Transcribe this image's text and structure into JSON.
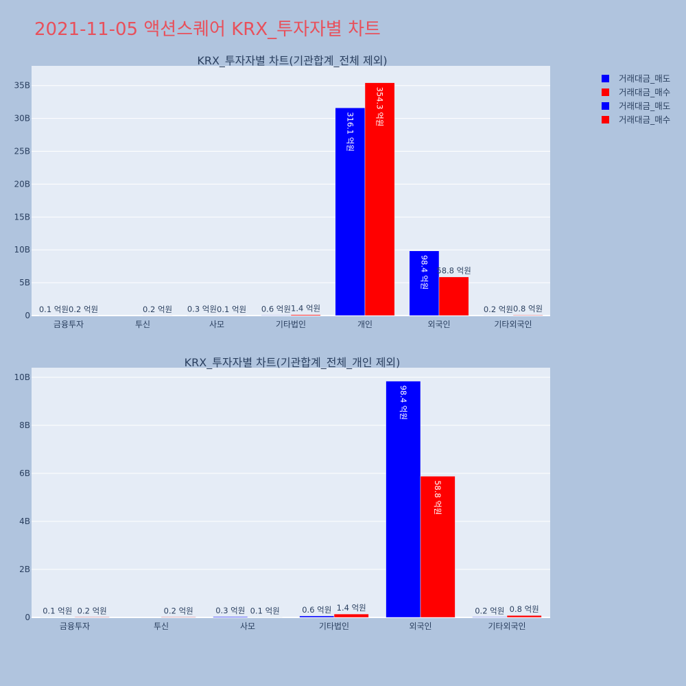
{
  "title": "2021-11-05 액션스퀘어 KRX_투자자별 차트",
  "legend": [
    "거래대금_매도",
    "거래대금_매수",
    "거래대금_매도",
    "거래대금_매수"
  ],
  "chart_data": [
    {
      "type": "bar",
      "title": "KRX_투자자별 차트(기관합계_전체 제외)",
      "categories": [
        "금융투자",
        "투신",
        "사모",
        "기타법인",
        "개인",
        "외국인",
        "기타외국인"
      ],
      "series": [
        {
          "name": "거래대금_매도",
          "color": "#0000ff",
          "values": [
            0.01,
            0,
            0.03,
            0.06,
            31.61,
            9.84,
            0.02
          ],
          "labels": [
            "0.1 억원",
            "",
            "0.3 억원",
            "0.6 억원",
            "316.1 억원",
            "98.4 억원",
            "0.2 억원"
          ]
        },
        {
          "name": "거래대금_매수",
          "color": "#ff0000",
          "values": [
            0.02,
            0.02,
            0.01,
            0.14,
            35.43,
            5.88,
            0.08
          ],
          "labels": [
            "0.2 억원",
            "0.2 억원",
            "0.1 억원",
            "1.4 억원",
            "354.3 억원",
            "58.8 억원",
            "0.8 억원"
          ]
        }
      ],
      "yunit": "B",
      "ylim": [
        0,
        38
      ],
      "yticks": [
        "0",
        "5B",
        "10B",
        "15B",
        "20B",
        "25B",
        "30B",
        "35B"
      ],
      "grid": true
    },
    {
      "type": "bar",
      "title": "KRX_투자자별 차트(기관합계_전체_개인 제외)",
      "categories": [
        "금융투자",
        "투신",
        "사모",
        "기타법인",
        "외국인",
        "기타외국인"
      ],
      "series": [
        {
          "name": "거래대금_매도",
          "color": "#0000ff",
          "values": [
            0.01,
            0,
            0.03,
            0.06,
            9.84,
            0.02
          ],
          "labels": [
            "0.1 억원",
            "",
            "0.3 억원",
            "0.6 억원",
            "98.4 억원",
            "0.2 억원"
          ]
        },
        {
          "name": "거래대금_매수",
          "color": "#ff0000",
          "values": [
            0.02,
            0.02,
            0.01,
            0.14,
            5.88,
            0.08
          ],
          "labels": [
            "0.2 억원",
            "0.2 억원",
            "0.1 억원",
            "1.4 억원",
            "58.8 억원",
            "0.8 억원"
          ]
        }
      ],
      "yunit": "B",
      "ylim": [
        0,
        10.4
      ],
      "yticks": [
        "0",
        "2B",
        "4B",
        "6B",
        "8B",
        "10B"
      ],
      "grid": true
    }
  ]
}
